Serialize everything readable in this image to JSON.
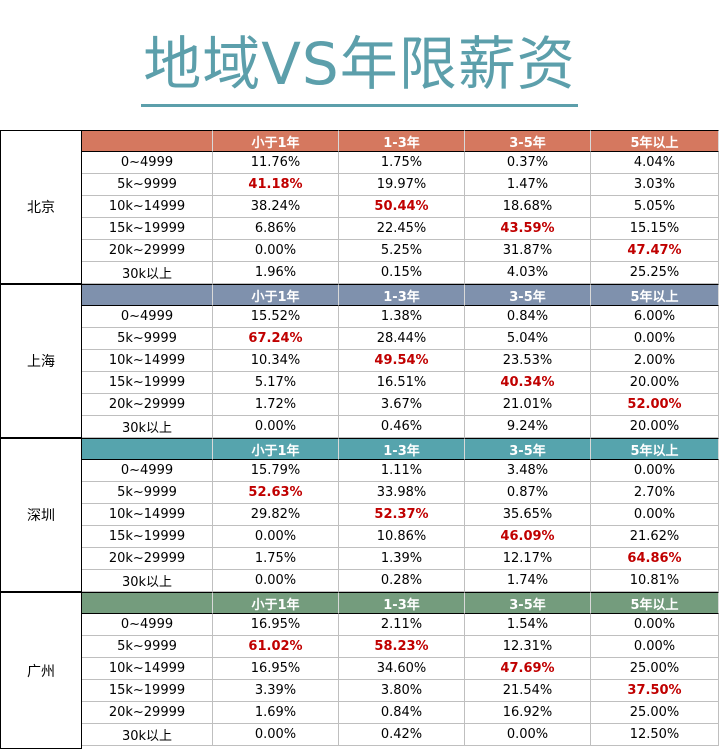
{
  "title": "地域VS年限薪资",
  "columns": [
    "",
    "小于1年",
    "1-3年",
    "3-5年",
    "5年以上"
  ],
  "cities": [
    {
      "name": "北京",
      "header_color": "#d5785f",
      "rows": [
        {
          "range": "0~4999",
          "values": [
            "11.76%",
            "1.75%",
            "0.37%",
            "4.04%"
          ],
          "hl": -1
        },
        {
          "range": "5k~9999",
          "values": [
            "41.18%",
            "19.97%",
            "1.47%",
            "3.03%"
          ],
          "hl": 0
        },
        {
          "range": "10k~14999",
          "values": [
            "38.24%",
            "50.44%",
            "18.68%",
            "5.05%"
          ],
          "hl": 1
        },
        {
          "range": "15k~19999",
          "values": [
            "6.86%",
            "22.45%",
            "43.59%",
            "15.15%"
          ],
          "hl": 2
        },
        {
          "range": "20k~29999",
          "values": [
            "0.00%",
            "5.25%",
            "31.87%",
            "47.47%"
          ],
          "hl": 3
        },
        {
          "range": "30k以上",
          "values": [
            "1.96%",
            "0.15%",
            "4.03%",
            "25.25%"
          ],
          "hl": -1
        }
      ]
    },
    {
      "name": "上海",
      "header_color": "#7f91ad",
      "rows": [
        {
          "range": "0~4999",
          "values": [
            "15.52%",
            "1.38%",
            "0.84%",
            "6.00%"
          ],
          "hl": -1
        },
        {
          "range": "5k~9999",
          "values": [
            "67.24%",
            "28.44%",
            "5.04%",
            "0.00%"
          ],
          "hl": 0
        },
        {
          "range": "10k~14999",
          "values": [
            "10.34%",
            "49.54%",
            "23.53%",
            "2.00%"
          ],
          "hl": 1
        },
        {
          "range": "15k~19999",
          "values": [
            "5.17%",
            "16.51%",
            "40.34%",
            "20.00%"
          ],
          "hl": 2
        },
        {
          "range": "20k~29999",
          "values": [
            "1.72%",
            "3.67%",
            "21.01%",
            "52.00%"
          ],
          "hl": 3
        },
        {
          "range": "30k以上",
          "values": [
            "0.00%",
            "0.46%",
            "9.24%",
            "20.00%"
          ],
          "hl": -1
        }
      ]
    },
    {
      "name": "深圳",
      "header_color": "#56a4ad",
      "rows": [
        {
          "range": "0~4999",
          "values": [
            "15.79%",
            "1.11%",
            "3.48%",
            "0.00%"
          ],
          "hl": -1
        },
        {
          "range": "5k~9999",
          "values": [
            "52.63%",
            "33.98%",
            "0.87%",
            "2.70%"
          ],
          "hl": 0
        },
        {
          "range": "10k~14999",
          "values": [
            "29.82%",
            "52.37%",
            "35.65%",
            "0.00%"
          ],
          "hl": 1
        },
        {
          "range": "15k~19999",
          "values": [
            "0.00%",
            "10.86%",
            "46.09%",
            "21.62%"
          ],
          "hl": 2
        },
        {
          "range": "20k~29999",
          "values": [
            "1.75%",
            "1.39%",
            "12.17%",
            "64.86%"
          ],
          "hl": 3
        },
        {
          "range": "30k以上",
          "values": [
            "0.00%",
            "0.28%",
            "1.74%",
            "10.81%"
          ],
          "hl": -1
        }
      ]
    },
    {
      "name": "广州",
      "header_color": "#749c7d",
      "rows": [
        {
          "range": "0~4999",
          "values": [
            "16.95%",
            "2.11%",
            "1.54%",
            "0.00%"
          ],
          "hl": -1
        },
        {
          "range": "5k~9999",
          "values": [
            "61.02%",
            "58.23%",
            "12.31%",
            "0.00%"
          ],
          "hl": [
            0,
            1
          ]
        },
        {
          "range": "10k~14999",
          "values": [
            "16.95%",
            "34.60%",
            "47.69%",
            "25.00%"
          ],
          "hl": 2
        },
        {
          "range": "15k~19999",
          "values": [
            "3.39%",
            "3.80%",
            "21.54%",
            "37.50%"
          ],
          "hl": 3
        },
        {
          "range": "20k~29999",
          "values": [
            "1.69%",
            "0.84%",
            "16.92%",
            "25.00%"
          ],
          "hl": -1
        },
        {
          "range": "30k以上",
          "values": [
            "0.00%",
            "0.42%",
            "0.00%",
            "12.50%"
          ],
          "hl": -1
        }
      ]
    }
  ],
  "highlight_color": "#c00000"
}
